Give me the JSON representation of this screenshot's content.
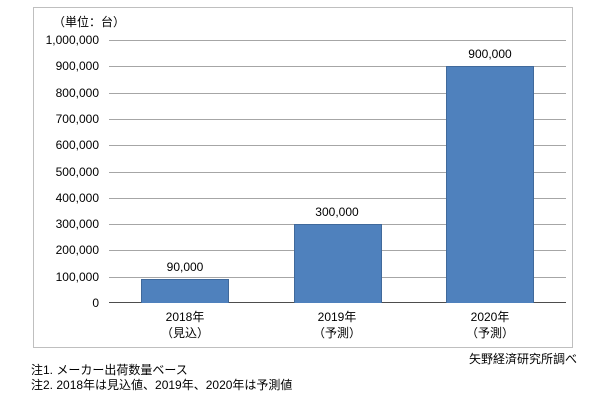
{
  "chart": {
    "unit_label": "（単位：台）",
    "source_label": "矢野経済研究所調べ",
    "notes": [
      "注1. メーカー出荷数量ベース",
      "注2. 2018年は見込値、2019年、2020年は予測値"
    ]
  },
  "chart_data": {
    "type": "bar",
    "title": "",
    "unit": "台",
    "categories": [
      {
        "label": "2018年",
        "sublabel": "（見込）"
      },
      {
        "label": "2019年",
        "sublabel": "（予測）"
      },
      {
        "label": "2020年",
        "sublabel": "（予測）"
      }
    ],
    "values": [
      90000,
      300000,
      900000
    ],
    "value_labels": [
      "90,000",
      "300,000",
      "900,000"
    ],
    "ylim": [
      0,
      1000000
    ],
    "ytick_step": 100000,
    "ytick_labels": [
      "0",
      "100,000",
      "200,000",
      "300,000",
      "400,000",
      "500,000",
      "600,000",
      "700,000",
      "800,000",
      "900,000",
      "1,000,000"
    ],
    "bar_color": "#4f81bd",
    "grid": true,
    "legend_position": "none"
  }
}
